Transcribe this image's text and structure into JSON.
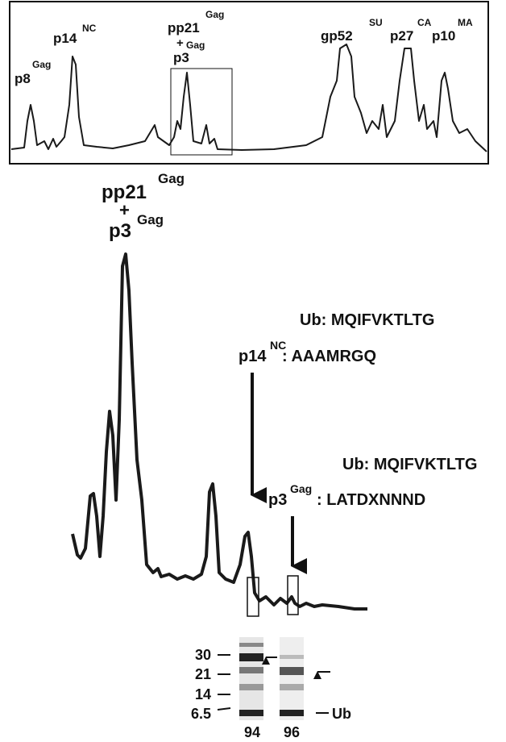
{
  "overview": {
    "labels": [
      {
        "name": "p8",
        "sup": "Gag"
      },
      {
        "name": "p14",
        "sup": "NC"
      },
      {
        "name": "pp21",
        "sup": "Gag"
      },
      {
        "name": "+",
        "sub": "Gag"
      },
      {
        "name": "p3"
      },
      {
        "name": "gp52",
        "sup": "SU"
      },
      {
        "name": "p27",
        "sup": "CA"
      },
      {
        "name": "p10",
        "sup": "MA"
      }
    ]
  },
  "zoom": {
    "peak_label": {
      "line1": "pp21",
      "line1_sup": "Gag",
      "line2": "+",
      "line3": "p3",
      "line3_sup": "Gag"
    },
    "annotations": [
      {
        "ub": "Ub: MQIFVKTLTG",
        "protein": "p14",
        "sup": "NC",
        "sequence": ": AAAMRGQ"
      },
      {
        "ub": "Ub: MQIFVKTLTG",
        "protein": "p3",
        "sup": "Gag",
        "sequence": ": LATDXNNND"
      }
    ]
  },
  "gel": {
    "markers": [
      30,
      21,
      14,
      6.5
    ],
    "band_label": "Ub",
    "fractions": [
      94,
      96
    ]
  }
}
